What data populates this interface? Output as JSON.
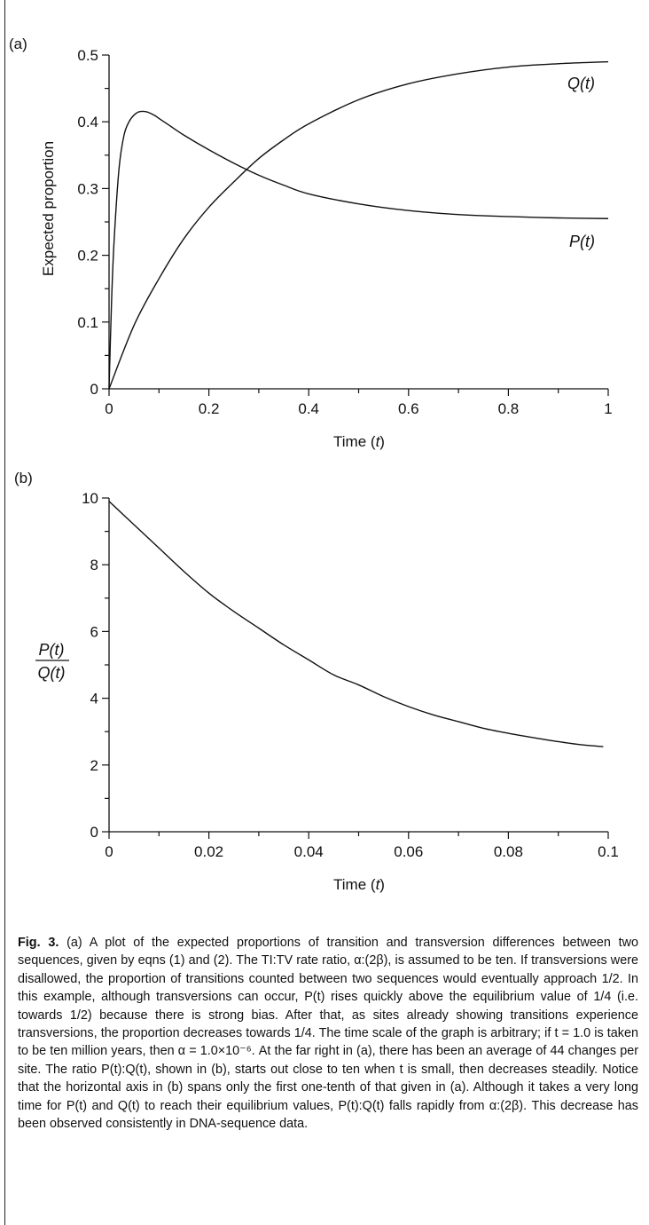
{
  "figure": {
    "caption_label": "Fig. 3.",
    "caption_text": "(a) A plot of the expected proportions of transition and transversion differences between two sequences, given by eqns (1) and (2). The TI:TV rate ratio, α:(2β), is assumed to be ten. If transversions were disallowed, the proportion of transitions counted between two sequences would eventually approach 1/2. In this example, although transversions can occur, P(t) rises quickly above the equilibrium value of 1/4 (i.e. towards 1/2) because there is strong bias. After that, as sites already showing transitions experience transversions, the proportion decreases towards 1/4. The time scale of the graph is arbitrary; if t = 1.0 is taken to be ten million years, then α = 1.0×10⁻⁶. At the far right in (a), there has been an average of 44 changes per site. The ratio P(t):Q(t), shown in (b), starts out close to ten when t is small, then decreases steadily. Notice that the horizontal axis in (b) spans only the first one-tenth of that given in (a). Although it takes a very long time for P(t) and Q(t) to reach their equilibrium values, P(t):Q(t) falls rapidly from α:(2β). This decrease has been observed consistently in DNA-sequence data."
  },
  "chart_data": [
    {
      "panel": "(a)",
      "type": "line",
      "xlabel": "Time (t)",
      "ylabel": "Expected proportion",
      "xlim": [
        0,
        1
      ],
      "ylim": [
        0,
        0.5
      ],
      "xticks": [
        "0",
        "0.2",
        "0.4",
        "0.6",
        "0.8",
        "1"
      ],
      "yticks": [
        "0",
        "0.1",
        "0.2",
        "0.3",
        "0.4",
        "0.5"
      ],
      "grid": false,
      "series": [
        {
          "name": "P(t)",
          "x": [
            0,
            0.005,
            0.01,
            0.02,
            0.03,
            0.04,
            0.05,
            0.06,
            0.075,
            0.09,
            0.1,
            0.12,
            0.15,
            0.2,
            0.25,
            0.3,
            0.35,
            0.4,
            0.5,
            0.6,
            0.7,
            0.8,
            0.9,
            1.0
          ],
          "values": [
            0,
            0.13,
            0.22,
            0.33,
            0.38,
            0.4,
            0.41,
            0.415,
            0.415,
            0.41,
            0.405,
            0.395,
            0.38,
            0.358,
            0.338,
            0.32,
            0.305,
            0.292,
            0.277,
            0.267,
            0.261,
            0.258,
            0.256,
            0.255
          ]
        },
        {
          "name": "Q(t)",
          "x": [
            0,
            0.05,
            0.1,
            0.15,
            0.2,
            0.25,
            0.3,
            0.35,
            0.4,
            0.5,
            0.6,
            0.7,
            0.8,
            0.9,
            1.0
          ],
          "values": [
            0,
            0.095,
            0.165,
            0.225,
            0.272,
            0.31,
            0.345,
            0.373,
            0.397,
            0.433,
            0.457,
            0.472,
            0.482,
            0.487,
            0.49
          ]
        }
      ],
      "labels": [
        "(a)",
        "P(t)",
        "Q(t)"
      ]
    },
    {
      "panel": "(b)",
      "type": "line",
      "xlabel": "Time (t)",
      "ylabel_num": "P(t)",
      "ylabel_den": "Q(t)",
      "xlim": [
        0,
        0.1
      ],
      "ylim": [
        0,
        10
      ],
      "xticks": [
        "0",
        "0.02",
        "0.04",
        "0.06",
        "0.08",
        "0.1"
      ],
      "yticks": [
        "0",
        "2",
        "4",
        "6",
        "8",
        "10"
      ],
      "grid": false,
      "series": [
        {
          "name": "P(t)/Q(t)",
          "x": [
            0,
            0.005,
            0.01,
            0.015,
            0.02,
            0.025,
            0.03,
            0.035,
            0.04,
            0.045,
            0.05,
            0.055,
            0.06,
            0.065,
            0.07,
            0.075,
            0.08,
            0.085,
            0.09,
            0.095,
            0.099
          ],
          "values": [
            9.9,
            9.2,
            8.5,
            7.8,
            7.15,
            6.6,
            6.1,
            5.6,
            5.15,
            4.7,
            4.4,
            4.05,
            3.75,
            3.5,
            3.3,
            3.1,
            2.95,
            2.82,
            2.7,
            2.6,
            2.55
          ]
        }
      ],
      "labels": [
        "(b)"
      ]
    }
  ]
}
